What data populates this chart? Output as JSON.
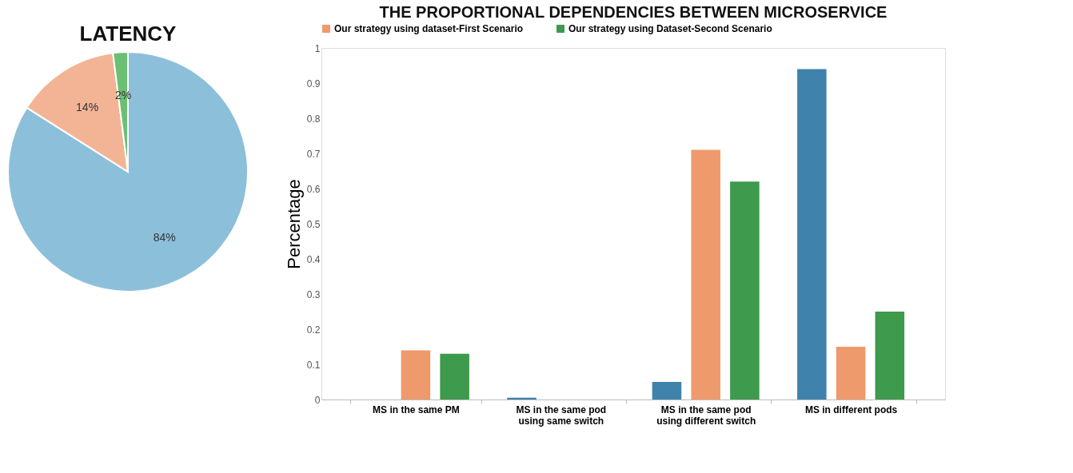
{
  "chart_data": [
    {
      "type": "pie",
      "title": "LATENCY",
      "categories": [
        null,
        null,
        null
      ],
      "values": [
        84,
        14,
        2
      ],
      "colors": [
        "#8cc0da",
        "#f3b496",
        "#6cbf73"
      ],
      "value_labels": [
        "84%",
        "14%",
        "2%"
      ],
      "legend": false
    },
    {
      "type": "bar",
      "title": "THE PROPORTIONAL DEPENDENCIES BETWEEN MICROSERVICE",
      "ylabel": "Percentage",
      "categories": [
        "MS in the same PM",
        "MS in the same pod using same switch",
        "MS in the same pod using different switch",
        "MS in different pods"
      ],
      "series": [
        {
          "color": "#3f82ab",
          "values": [
            0,
            0.005,
            0.05,
            0.94
          ]
        },
        {
          "name": "Our strategy using dataset-First Scenario",
          "color": "#ee9a6c",
          "values": [
            0.14,
            0,
            0.71,
            0.15
          ]
        },
        {
          "name": "Our strategy using Dataset-Second Scenario",
          "color": "#3e9a4c",
          "values": [
            0.13,
            0,
            0.62,
            0.25
          ]
        }
      ],
      "ylim": [
        0,
        1
      ],
      "yticks": [
        0,
        0.1,
        0.2,
        0.3,
        0.4,
        0.5,
        0.6,
        0.7,
        0.8,
        0.9,
        1
      ],
      "grid": false,
      "legend": "top"
    }
  ]
}
